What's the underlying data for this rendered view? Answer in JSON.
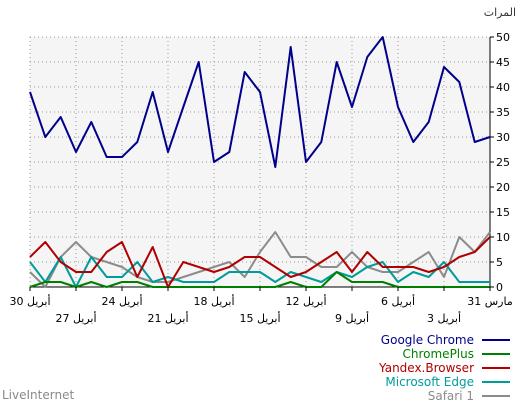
{
  "chart_data": {
    "type": "line",
    "ylabel": "المرات",
    "ylim": [
      0,
      50
    ],
    "y_ticks": [
      0,
      5,
      10,
      15,
      20,
      25,
      30,
      35,
      40,
      45,
      50
    ],
    "grid": true,
    "legend_position": "bottom-right",
    "x_tick_labels_row1": [
      "30 أبريل",
      "24 أبريل",
      "18 أبريل",
      "12 أبريل",
      "6 أبريل",
      "31 مارس"
    ],
    "x_tick_labels_row2": [
      "27 أبريل",
      "21 أبريل",
      "15 أبريل",
      "9 أبريل",
      "3 أبريل"
    ],
    "series": [
      {
        "name": "Google Chrome",
        "color": "#00008b",
        "values": [
          39,
          30,
          34,
          27,
          33,
          26,
          26,
          29,
          39,
          27,
          36,
          45,
          25,
          27,
          43,
          39,
          24,
          48,
          25,
          29,
          45,
          36,
          46,
          50,
          36,
          29,
          33,
          44,
          41,
          29,
          30
        ]
      },
      {
        "name": "ChromePlus",
        "color": "#008000",
        "values": [
          0,
          1,
          1,
          0,
          1,
          0,
          1,
          1,
          0,
          0,
          0,
          0,
          0,
          0,
          0,
          0,
          0,
          1,
          0,
          0,
          3,
          1,
          1,
          1,
          0,
          0,
          0,
          0,
          0,
          0,
          0
        ]
      },
      {
        "name": "Yandex.Browser",
        "color": "#b00000",
        "values": [
          6,
          9,
          5,
          3,
          3,
          7,
          9,
          2,
          8,
          0,
          5,
          4,
          3,
          4,
          6,
          6,
          4,
          2,
          3,
          5,
          7,
          3,
          7,
          4,
          4,
          4,
          3,
          4,
          6,
          7,
          10
        ]
      },
      {
        "name": "Microsoft Edge",
        "color": "#009b9b",
        "values": [
          5,
          1,
          6,
          0,
          6,
          2,
          2,
          5,
          1,
          2,
          1,
          1,
          1,
          3,
          3,
          3,
          1,
          3,
          2,
          1,
          3,
          2,
          4,
          5,
          1,
          3,
          2,
          5,
          1,
          1,
          1
        ]
      },
      {
        "name": "Safari 1",
        "color": "#8c8c8c",
        "values": [
          3,
          0,
          6,
          9,
          6,
          5,
          4,
          2,
          1,
          1,
          2,
          3,
          4,
          5,
          2,
          7,
          11,
          6,
          6,
          4,
          4,
          7,
          4,
          3,
          3,
          5,
          7,
          2,
          10,
          7,
          11
        ]
      }
    ]
  },
  "legend": [
    {
      "label": "Google Chrome",
      "color": "#00008b"
    },
    {
      "label": "ChromePlus",
      "color": "#008000"
    },
    {
      "label": "Yandex.Browser",
      "color": "#b00000"
    },
    {
      "label": "Microsoft Edge",
      "color": "#009b9b"
    },
    {
      "label": "Safari 1",
      "color": "#8c8c8c"
    }
  ],
  "brand": "LiveInternet"
}
